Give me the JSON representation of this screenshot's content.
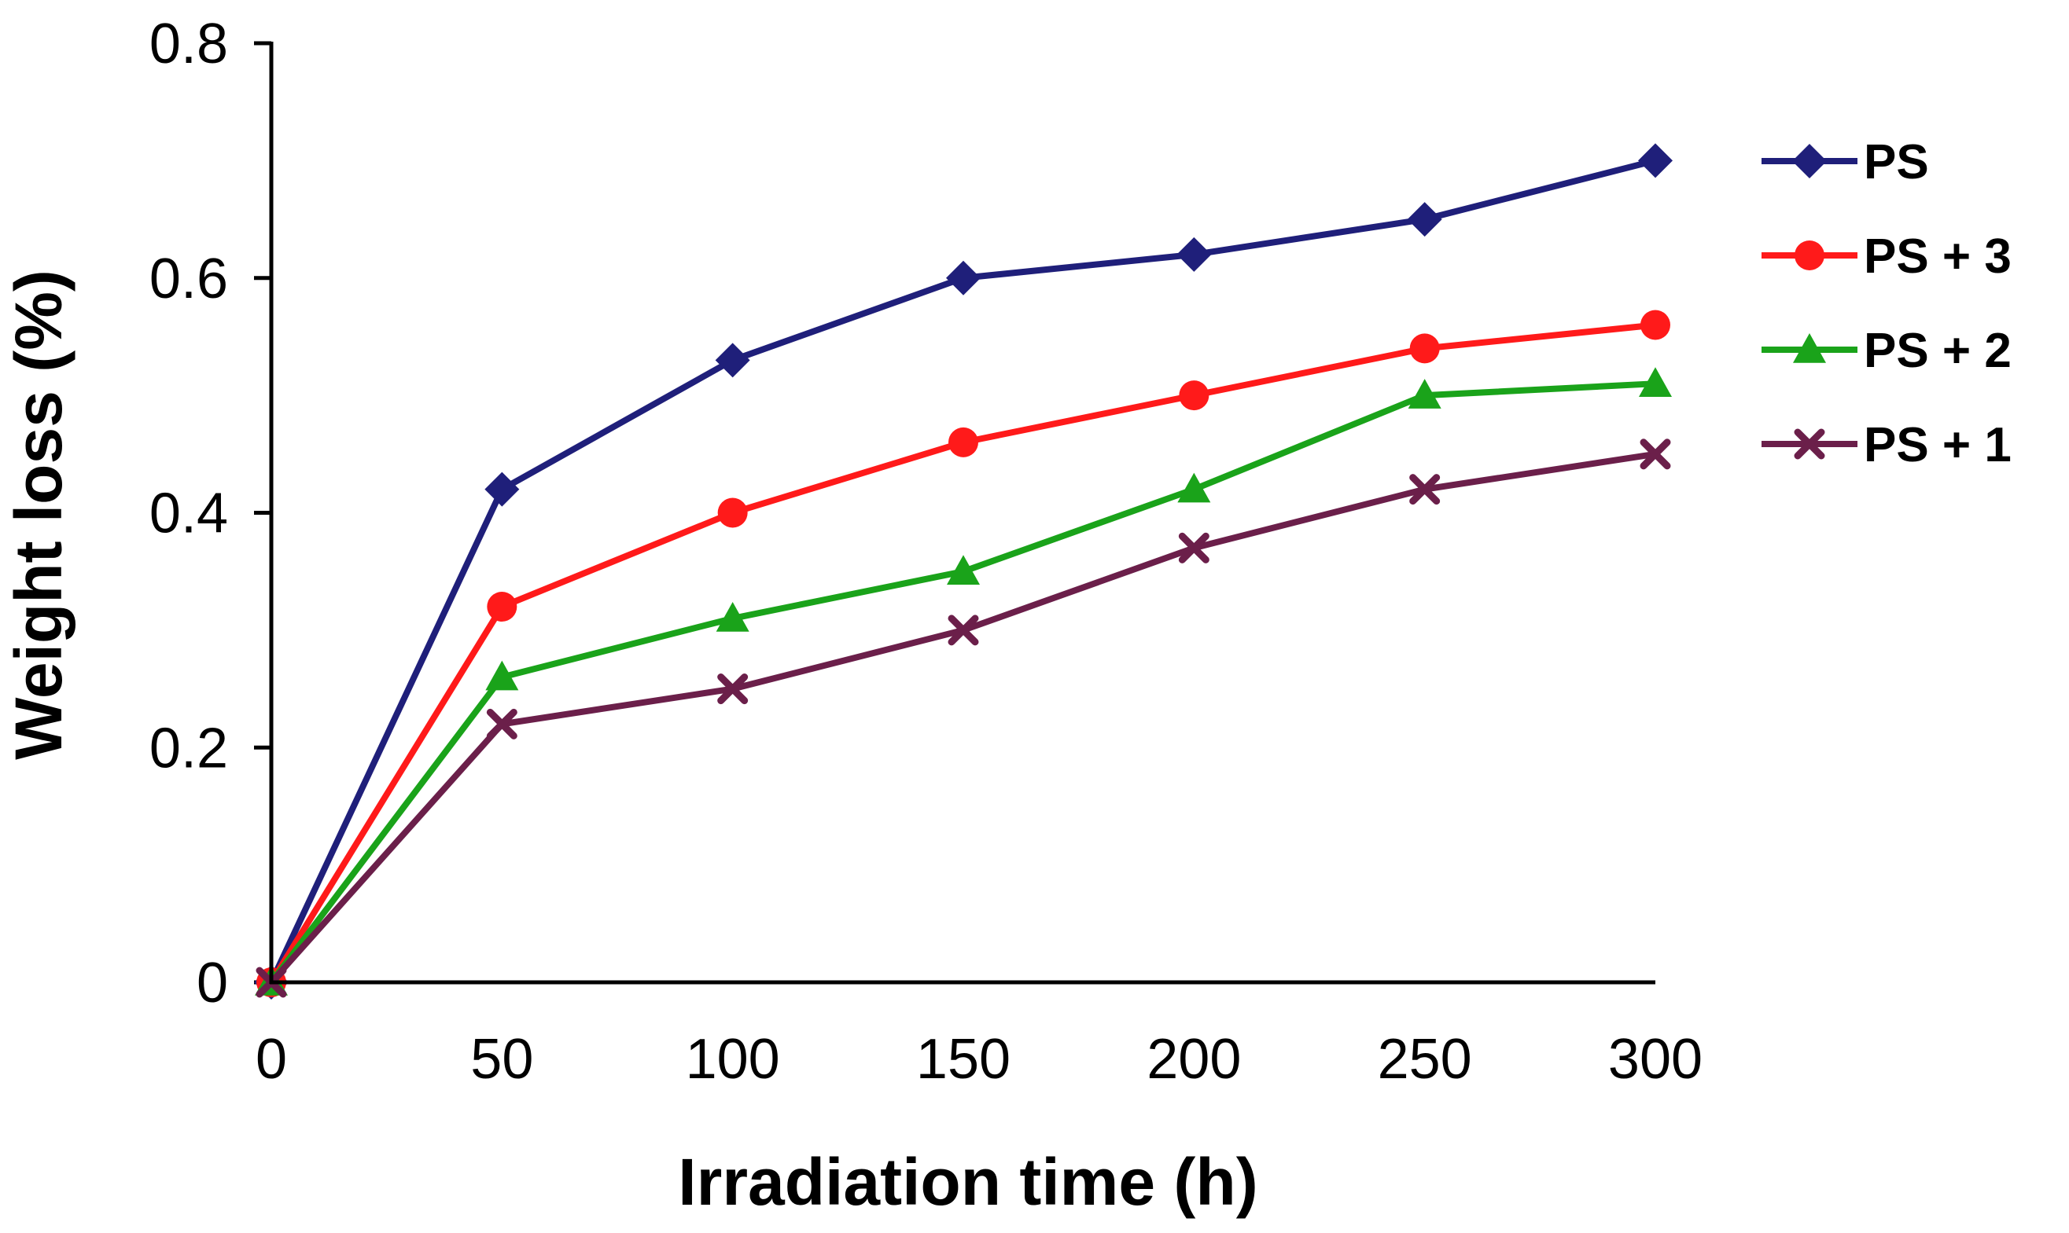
{
  "chart_data": {
    "type": "line",
    "title": "",
    "xlabel": "Irradiation time (h)",
    "ylabel": "Weight loss (%)",
    "x": [
      0,
      50,
      100,
      150,
      200,
      250,
      300
    ],
    "xlim": [
      0,
      300
    ],
    "ylim": [
      0,
      0.8
    ],
    "xticks": [
      "0",
      "50",
      "100",
      "150",
      "200",
      "250",
      "300"
    ],
    "yticks": [
      "0",
      "0.2",
      "0.4",
      "0.6",
      "0.8"
    ],
    "grid": false,
    "legend_position": "right",
    "series": [
      {
        "name": "PS",
        "color": "#1f1f7a",
        "marker": "diamond",
        "values": [
          0,
          0.42,
          0.53,
          0.6,
          0.62,
          0.65,
          0.7
        ]
      },
      {
        "name": "PS + 3",
        "color": "#ff1a1a",
        "marker": "circle",
        "values": [
          0,
          0.32,
          0.4,
          0.46,
          0.5,
          0.54,
          0.56
        ]
      },
      {
        "name": "PS + 2",
        "color": "#1aa31a",
        "marker": "triangle",
        "values": [
          0,
          0.26,
          0.31,
          0.35,
          0.42,
          0.5,
          0.51
        ]
      },
      {
        "name": "PS + 1",
        "color": "#6b1f4a",
        "marker": "cross",
        "values": [
          0,
          0.22,
          0.25,
          0.3,
          0.37,
          0.42,
          0.45
        ]
      }
    ]
  }
}
